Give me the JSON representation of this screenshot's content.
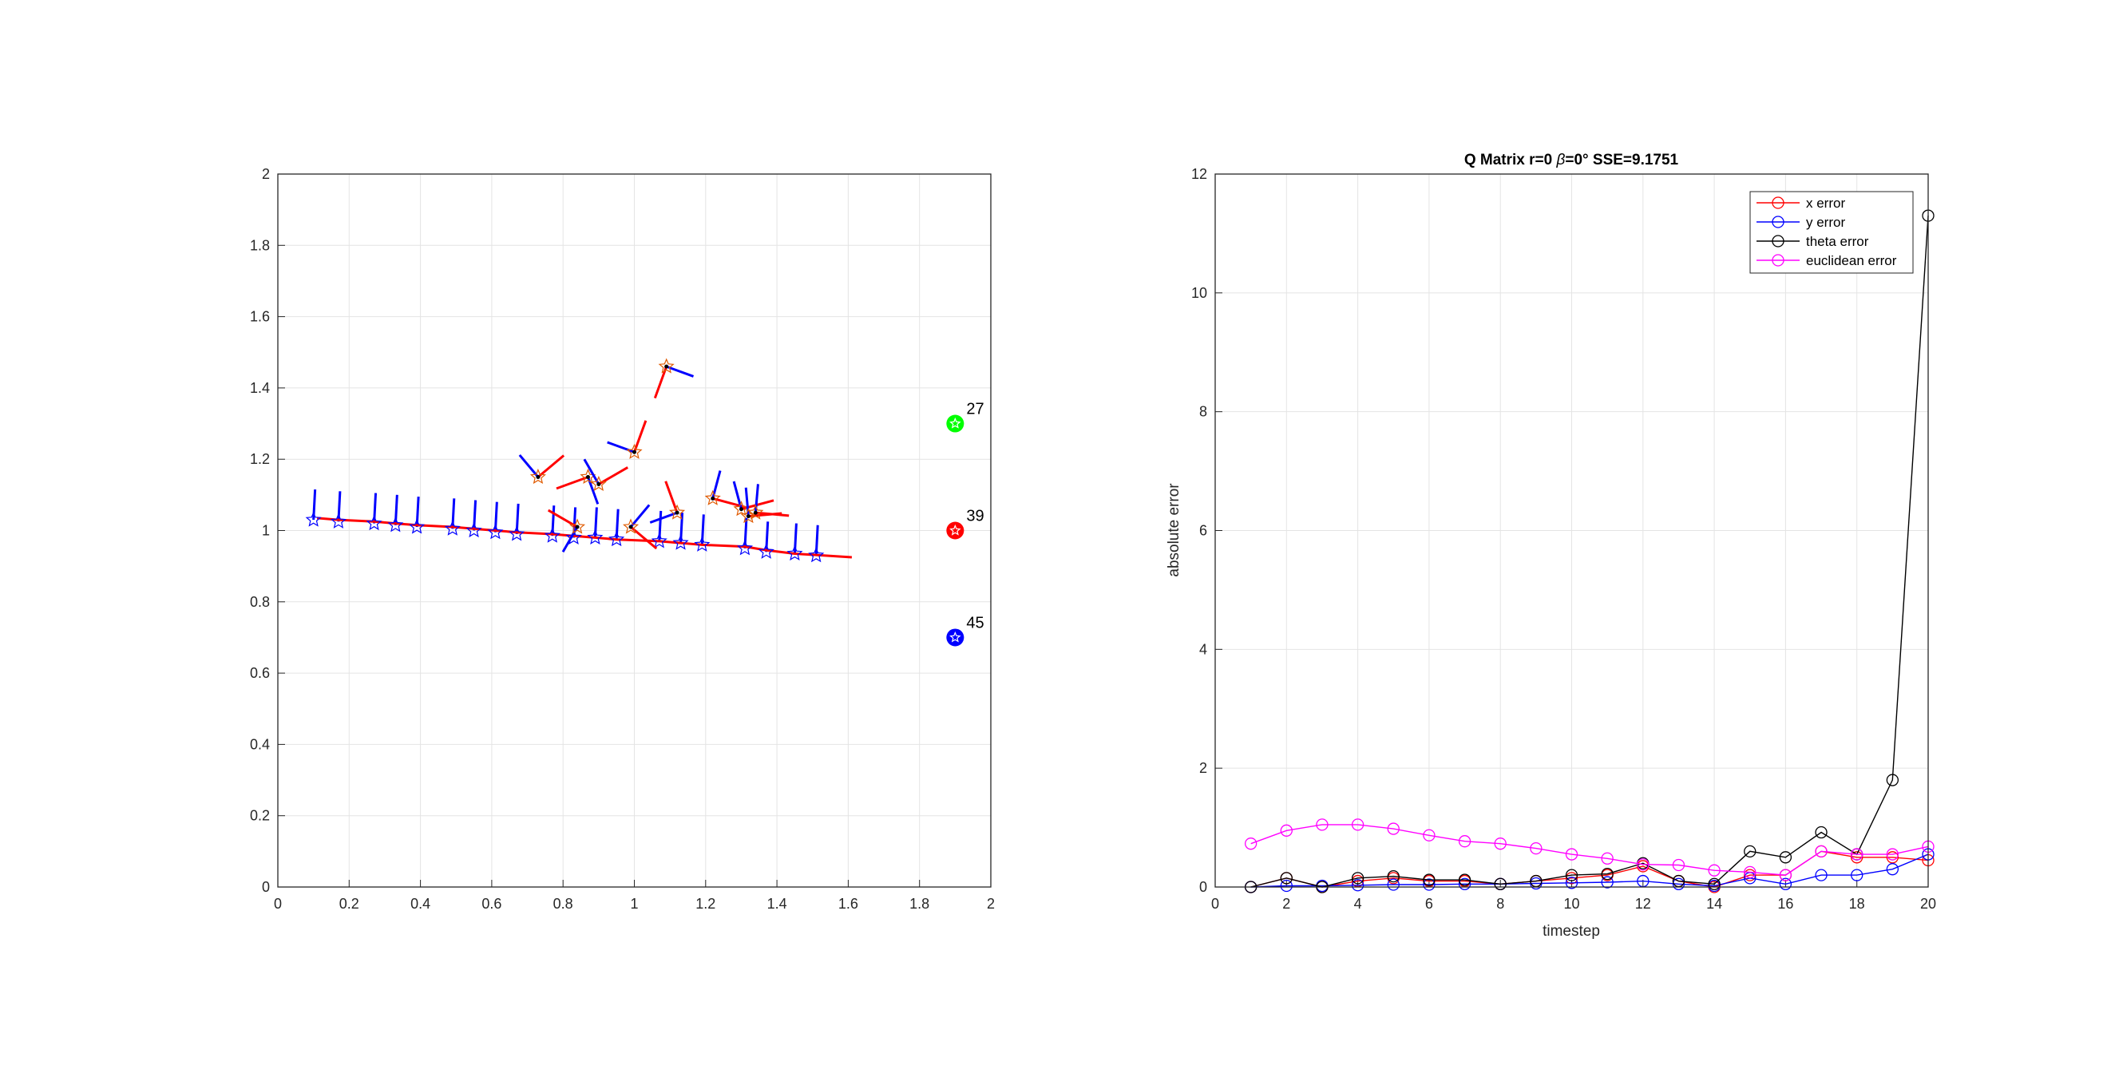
{
  "chart_data": [
    {
      "type": "scatter",
      "title": "",
      "xlabel": "",
      "ylabel": "",
      "xlim": [
        0,
        2
      ],
      "ylim": [
        0,
        2
      ],
      "xticks": [
        "0",
        "0.2",
        "0.4",
        "0.6",
        "0.8",
        "1",
        "1.2",
        "1.4",
        "1.6",
        "1.8",
        "2"
      ],
      "yticks": [
        "0",
        "0.2",
        "0.4",
        "0.6",
        "0.8",
        "1",
        "1.2",
        "1.4",
        "1.6",
        "1.8",
        "2"
      ],
      "grid": true,
      "landmarks": [
        {
          "id": "27",
          "x": 1.9,
          "y": 1.3,
          "color": "#00ff00"
        },
        {
          "id": "39",
          "x": 1.9,
          "y": 1.0,
          "color": "#ff0000"
        },
        {
          "id": "45",
          "x": 1.9,
          "y": 0.7,
          "color": "#0000ff"
        }
      ],
      "true_path": {
        "color": "#0000ff",
        "x": [
          0.1,
          0.17,
          0.27,
          0.33,
          0.39,
          0.49,
          0.55,
          0.61,
          0.67,
          0.77,
          0.83,
          0.89,
          0.95,
          1.07,
          1.13,
          1.19,
          1.31,
          1.37,
          1.45,
          1.51
        ],
        "y": [
          1.03,
          1.025,
          1.02,
          1.015,
          1.01,
          1.005,
          1.0,
          0.995,
          0.99,
          0.985,
          0.98,
          0.98,
          0.975,
          0.97,
          0.965,
          0.96,
          0.95,
          0.94,
          0.935,
          0.93
        ]
      },
      "estimated_path": {
        "color": "#ff0000",
        "x": [
          0.11,
          0.17,
          0.27,
          0.33,
          0.39,
          0.49,
          0.55,
          0.61,
          0.67,
          0.77,
          0.83,
          0.89,
          0.95,
          1.07,
          1.13,
          1.19,
          1.31,
          1.37,
          1.45,
          1.61
        ],
        "y": [
          1.035,
          1.03,
          1.025,
          1.02,
          1.015,
          1.01,
          1.005,
          1.0,
          0.995,
          0.99,
          0.985,
          0.98,
          0.975,
          0.97,
          0.965,
          0.96,
          0.955,
          0.945,
          0.935,
          0.925
        ]
      },
      "estimate_poses": [
        {
          "x": 0.73,
          "y": 1.15
        },
        {
          "x": 0.84,
          "y": 1.01
        },
        {
          "x": 0.87,
          "y": 1.15
        },
        {
          "x": 0.9,
          "y": 1.13
        },
        {
          "x": 0.99,
          "y": 1.01
        },
        {
          "x": 1.0,
          "y": 1.22
        },
        {
          "x": 1.09,
          "y": 1.46
        },
        {
          "x": 1.12,
          "y": 1.05
        },
        {
          "x": 1.22,
          "y": 1.09
        },
        {
          "x": 1.3,
          "y": 1.06
        },
        {
          "x": 1.32,
          "y": 1.04
        },
        {
          "x": 1.34,
          "y": 1.05
        }
      ]
    },
    {
      "type": "line",
      "title": "Q Matrix r=0 β=0° SSE=9.1751",
      "title_parts": {
        "prefix": "Q Matrix r=0 ",
        "beta": "β",
        "suffix": "=0° SSE=9.1751"
      },
      "xlabel": "timestep",
      "ylabel": "absolute error",
      "xlim": [
        0,
        20
      ],
      "ylim": [
        0,
        12
      ],
      "xticks": [
        "0",
        "2",
        "4",
        "6",
        "8",
        "10",
        "12",
        "14",
        "16",
        "18",
        "20"
      ],
      "yticks": [
        "0",
        "2",
        "4",
        "6",
        "8",
        "10",
        "12"
      ],
      "grid": true,
      "legend_position": "top-right",
      "x": [
        1,
        2,
        3,
        4,
        5,
        6,
        7,
        8,
        9,
        10,
        11,
        12,
        13,
        14,
        15,
        16,
        17,
        18,
        19,
        20
      ],
      "series": [
        {
          "name": "x error",
          "color": "#ff0000",
          "values": [
            0.0,
            0.15,
            0.0,
            0.1,
            0.15,
            0.1,
            0.1,
            0.05,
            0.1,
            0.15,
            0.2,
            0.35,
            0.1,
            0.0,
            0.2,
            0.2,
            0.6,
            0.5,
            0.5,
            0.45
          ]
        },
        {
          "name": "y error",
          "color": "#0000ff",
          "values": [
            0.0,
            0.02,
            0.02,
            0.03,
            0.04,
            0.04,
            0.05,
            0.05,
            0.06,
            0.07,
            0.08,
            0.1,
            0.05,
            0.02,
            0.15,
            0.05,
            0.2,
            0.2,
            0.3,
            0.55
          ]
        },
        {
          "name": "theta error",
          "color": "#000000",
          "values": [
            0.0,
            0.15,
            0.0,
            0.15,
            0.18,
            0.12,
            0.12,
            0.05,
            0.1,
            0.2,
            0.22,
            0.4,
            0.1,
            0.05,
            0.6,
            0.5,
            0.92,
            0.55,
            1.8,
            11.3
          ]
        },
        {
          "name": "euclidean error",
          "color": "#ff00ff",
          "values": [
            0.73,
            0.95,
            1.05,
            1.05,
            0.98,
            0.87,
            0.77,
            0.73,
            0.65,
            0.55,
            0.48,
            0.38,
            0.37,
            0.28,
            0.25,
            0.2,
            0.6,
            0.55,
            0.55,
            0.68
          ]
        }
      ]
    }
  ]
}
